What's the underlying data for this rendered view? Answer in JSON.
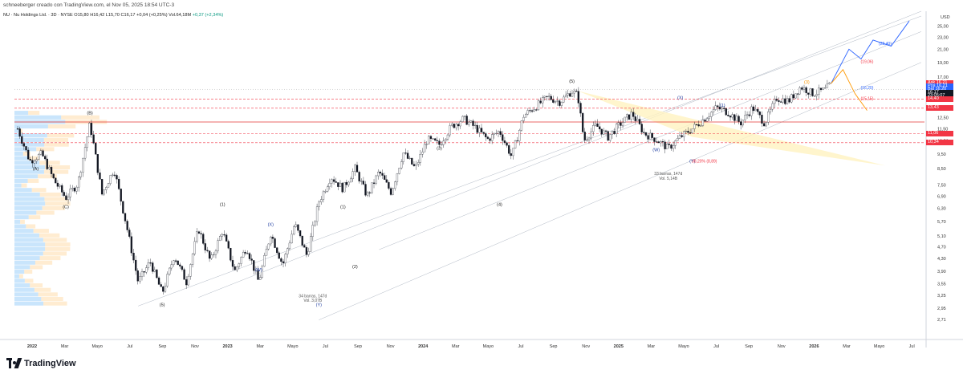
{
  "header": {
    "credit": "schneeberger creado con TradingView.com, el Nov 05, 2025 18:54 UTC-3",
    "symbol": "NU · Nu Holdings Ltd. · 3D · NYSE",
    "ohlc": "O15,80 H16,42 L15,70 C16,17 +0,04 (+0,25%) Vol.64,18M",
    "change": "+0,37 (+2,34%)",
    "currency": "USD"
  },
  "footer": {
    "brand": "TradingView"
  },
  "price_tags": [
    {
      "label": "Ask",
      "value": "16,21",
      "price": 16.21,
      "color": "#f23645"
    },
    {
      "label": "Pos",
      "value": "16,21",
      "price": 15.85,
      "color": "#2962ff"
    },
    {
      "label": "Bid",
      "value": "16,20",
      "price": 15.5,
      "color": "#2962ff"
    },
    {
      "label": "",
      "value": "16,17",
      "price": 15.1,
      "color": "#131722"
    },
    {
      "label": "",
      "value": "23:05:07",
      "price": 14.75,
      "color": "#131722"
    },
    {
      "label": "",
      "value": "14,40",
      "price": 14.4,
      "color": "#f23645"
    },
    {
      "label": "",
      "value": "13,43",
      "price": 13.43,
      "color": "#f23645"
    },
    {
      "label": "",
      "value": "11,06",
      "price": 11.06,
      "color": "#f23645"
    },
    {
      "label": "",
      "value": "10,34",
      "price": 10.34,
      "color": "#f23645"
    }
  ],
  "chart_data": {
    "type": "candlestick",
    "title": "",
    "xlabel": "",
    "ylabel": "",
    "y_scale": "log",
    "ylim": [
      2.4,
      28
    ],
    "y_ticks": [
      "25,00",
      "23,00",
      "21,00",
      "19,00",
      "17,00",
      "15,00",
      "12,50",
      "11,50",
      "10,50",
      "9,50",
      "8,50",
      "7,50",
      "6,90",
      "6,30",
      "5,70",
      "5,10",
      "4,70",
      "4,30",
      "3,90",
      "3,55",
      "3,25",
      "2,95",
      "2,71"
    ],
    "x_ticks": [
      "2022",
      "Mar",
      "Mayo",
      "Jul",
      "Sep",
      "Nov",
      "2023",
      "Mar",
      "Mayo",
      "Jul",
      "Sep",
      "Nov",
      "2024",
      "Mar",
      "Mayo",
      "Jul",
      "Sep",
      "Nov",
      "2025",
      "Mar",
      "Mayo",
      "Jul",
      "Sep",
      "Nov",
      "2026",
      "Mar",
      "Mayo",
      "Jul"
    ],
    "price_path": [
      [
        0,
        11.5
      ],
      [
        2,
        9.0
      ],
      [
        4,
        9.5
      ],
      [
        6,
        7.8
      ],
      [
        8,
        6.8
      ],
      [
        10,
        7.6
      ],
      [
        12,
        12.0
      ],
      [
        14,
        7.0
      ],
      [
        16,
        8.5
      ],
      [
        18,
        5.6
      ],
      [
        20,
        3.6
      ],
      [
        22,
        4.2
      ],
      [
        24,
        3.3
      ],
      [
        26,
        4.4
      ],
      [
        28,
        3.6
      ],
      [
        30,
        5.4
      ],
      [
        32,
        4.2
      ],
      [
        34,
        5.3
      ],
      [
        36,
        3.9
      ],
      [
        38,
        4.7
      ],
      [
        40,
        3.6
      ],
      [
        42,
        5.2
      ],
      [
        44,
        4.1
      ],
      [
        46,
        5.6
      ],
      [
        48,
        4.4
      ],
      [
        50,
        6.6
      ],
      [
        52,
        8.0
      ],
      [
        54,
        7.3
      ],
      [
        56,
        8.5
      ],
      [
        58,
        6.9
      ],
      [
        60,
        8.3
      ],
      [
        62,
        7.1
      ],
      [
        64,
        9.6
      ],
      [
        66,
        8.5
      ],
      [
        68,
        10.6
      ],
      [
        70,
        10.2
      ],
      [
        72,
        11.7
      ],
      [
        74,
        12.4
      ],
      [
        76,
        11.6
      ],
      [
        78,
        10.6
      ],
      [
        80,
        11.3
      ],
      [
        82,
        9.3
      ],
      [
        84,
        12.7
      ],
      [
        86,
        13.6
      ],
      [
        88,
        14.6
      ],
      [
        90,
        14.1
      ],
      [
        92,
        15.3
      ],
      [
        93,
        14.8
      ],
      [
        94,
        10.5
      ],
      [
        96,
        11.8
      ],
      [
        98,
        10.8
      ],
      [
        100,
        11.9
      ],
      [
        102,
        12.9
      ],
      [
        104,
        11.1
      ],
      [
        106,
        10.6
      ],
      [
        108,
        9.9
      ],
      [
        110,
        10.8
      ],
      [
        112,
        11.5
      ],
      [
        114,
        12.4
      ],
      [
        116,
        13.5
      ],
      [
        118,
        13.0
      ],
      [
        120,
        12.0
      ],
      [
        122,
        13.5
      ],
      [
        124,
        12.0
      ],
      [
        126,
        14.5
      ],
      [
        128,
        14.2
      ],
      [
        130,
        15.8
      ],
      [
        132,
        15.0
      ],
      [
        134,
        15.4
      ],
      [
        135,
        16.17
      ]
    ],
    "series": [
      {
        "name": "",
        "color": "#089981"
      },
      {
        "name": "",
        "color": "#f23645"
      }
    ],
    "horizontal_levels": [
      14.4,
      13.43,
      12.1,
      11.06,
      10.34
    ],
    "projections": [
      {
        "name": "",
        "color": "#2962ff",
        "points": [
          [
            135,
            16.17
          ],
          [
            138,
            21.0
          ],
          [
            140,
            19.5
          ],
          [
            142,
            22.5
          ],
          [
            145,
            21.5
          ],
          [
            148,
            26.0
          ]
        ]
      },
      {
        "name": "",
        "color": "#ff9800",
        "points": [
          [
            135,
            16.17
          ],
          [
            137,
            18.0
          ],
          [
            139,
            15.0
          ],
          [
            141,
            13.2
          ]
        ]
      }
    ],
    "wave_labels": [
      {
        "text": "(A)",
        "x": 3,
        "y": 8.4,
        "color": "#1a1a1a"
      },
      {
        "text": "(C)",
        "x": 8,
        "y": 6.3,
        "color": "#1a1a1a"
      },
      {
        "text": "(B)",
        "x": 12,
        "y": 12.8,
        "color": "#1a1a1a"
      },
      {
        "text": "(5)",
        "x": 24,
        "y": 3.0,
        "color": "#1a1a1a"
      },
      {
        "text": "(1)",
        "x": 34,
        "y": 6.4,
        "color": "#1a1a1a"
      },
      {
        "text": "(W)",
        "x": 40,
        "y": 3.9,
        "color": "#1e3ca0"
      },
      {
        "text": "(X)",
        "x": 42,
        "y": 5.5,
        "color": "#1e3ca0"
      },
      {
        "text": "(Y)",
        "x": 50,
        "y": 3.0,
        "color": "#1e3ca0"
      },
      {
        "text": "(1)",
        "x": 54,
        "y": 6.3,
        "color": "#1a1a1a"
      },
      {
        "text": "(2)",
        "x": 56,
        "y": 4.0,
        "color": "#1a1a1a"
      },
      {
        "text": "(3)",
        "x": 70,
        "y": 9.8,
        "color": "#1a1a1a"
      },
      {
        "text": "(4)",
        "x": 80,
        "y": 6.4,
        "color": "#1a1a1a"
      },
      {
        "text": "(5)",
        "x": 92,
        "y": 16.3,
        "color": "#1a1a1a"
      },
      {
        "text": "(W)",
        "x": 106,
        "y": 9.7,
        "color": "#1e3ca0"
      },
      {
        "text": "(X)",
        "x": 110,
        "y": 14.4,
        "color": "#1e3ca0"
      },
      {
        "text": "(Y)",
        "x": 112,
        "y": 8.9,
        "color": "#1e3ca0"
      },
      {
        "text": "(1)",
        "x": 117,
        "y": 13.6,
        "color": "#1e3ca0"
      },
      {
        "text": "(3)",
        "x": 131,
        "y": 16.2,
        "color": "#ff9800"
      }
    ],
    "annotations": [
      {
        "text": "34 barras, 147d",
        "x": 49,
        "y": 3.2
      },
      {
        "text": "Vol. 3,07B",
        "x": 49,
        "y": 3.1
      },
      {
        "text": "33 barras, 147d",
        "x": 108,
        "y": 8.1
      },
      {
        "text": "Vol. 5,14B",
        "x": 108,
        "y": 7.8
      },
      {
        "text": "38,20% (8,89)",
        "x": 114,
        "y": 8.89
      },
      {
        "text": "(16,20)",
        "x": 141,
        "y": 15.5
      },
      {
        "text": "(15,15)",
        "x": 141,
        "y": 14.3
      },
      {
        "text": "(19,06)",
        "x": 141,
        "y": 18.9
      },
      {
        "text": "(22,40)",
        "x": 144,
        "y": 21.7
      }
    ]
  }
}
